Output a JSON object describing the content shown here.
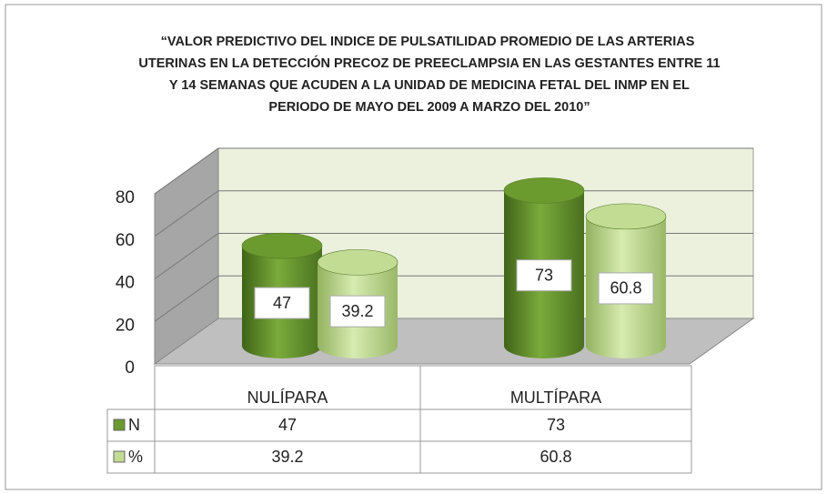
{
  "chart_data": {
    "type": "bar",
    "title": "“VALOR PREDICTIVO DEL INDICE DE PULSATILIDAD PROMEDIO DE LAS ARTERIAS UTERINAS EN LA DETECCIÓN PRECOZ DE PREECLAMPSIA EN LAS GESTANTES ENTRE 11 Y 14 SEMANAS QUE ACUDEN A LA UNIDAD DE MEDICINA FETAL DEL INMP EN EL PERIODO DE MAYO DEL 2009 A MARZO DEL 2010”",
    "categories": [
      "NULÍPARA",
      "MULTÍPARA"
    ],
    "series": [
      {
        "name": "N",
        "color": "#6b9a2e",
        "values": [
          47,
          73
        ]
      },
      {
        "name": "%",
        "color": "#c3dc94",
        "values": [
          39.2,
          60.8
        ]
      }
    ],
    "ylim": [
      0,
      80
    ],
    "yticks": [
      0,
      20,
      40,
      60,
      80
    ],
    "grid": true
  }
}
